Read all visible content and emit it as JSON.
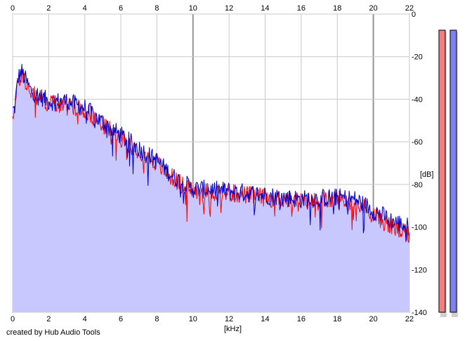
{
  "chart_data": {
    "type": "area",
    "title": "",
    "xlabel": "[kHz]",
    "ylabel": "[dB]",
    "xlim": [
      0,
      22
    ],
    "ylim": [
      -140,
      0
    ],
    "x_ticks": [
      0,
      2,
      4,
      6,
      8,
      10,
      12,
      14,
      16,
      18,
      20,
      22
    ],
    "y_ticks": [
      0,
      -20,
      -40,
      -60,
      -80,
      -100,
      -120,
      -140
    ],
    "grid": true,
    "series": [
      {
        "channel": "left",
        "color": "#ff0000",
        "x": [
          0.1,
          0.3,
          0.5,
          1,
          2,
          3,
          4,
          5,
          6,
          7,
          8,
          9,
          10,
          12,
          14,
          16,
          18,
          19,
          20,
          21,
          22
        ],
        "values": [
          -46,
          -32,
          -28,
          -37,
          -42,
          -42,
          -45,
          -52,
          -58,
          -64,
          -70,
          -78,
          -83,
          -84,
          -86,
          -88,
          -87,
          -88,
          -94,
          -100,
          -104
        ]
      },
      {
        "channel": "right",
        "color": "#0000cc",
        "x": [
          0.1,
          0.3,
          0.5,
          1,
          2,
          3,
          4,
          5,
          6,
          7,
          8,
          9,
          10,
          12,
          14,
          16,
          18,
          19,
          20,
          21,
          22
        ],
        "values": [
          -45,
          -30,
          -27,
          -36,
          -41,
          -41,
          -44,
          -51,
          -57,
          -63,
          -69,
          -77,
          -82,
          -83,
          -85,
          -87,
          -86,
          -87,
          -92,
          -97,
          -100
        ]
      }
    ],
    "meters": [
      {
        "channel": "left",
        "color": "#f08080",
        "level": 1.0
      },
      {
        "channel": "right",
        "color": "#8080f0",
        "level": 1.0
      }
    ],
    "fill_color": "#c8c8ff",
    "grid_color": "#c8c8c8",
    "grid_major_color": "#969696"
  },
  "caption": "created by Hub Audio Tools"
}
